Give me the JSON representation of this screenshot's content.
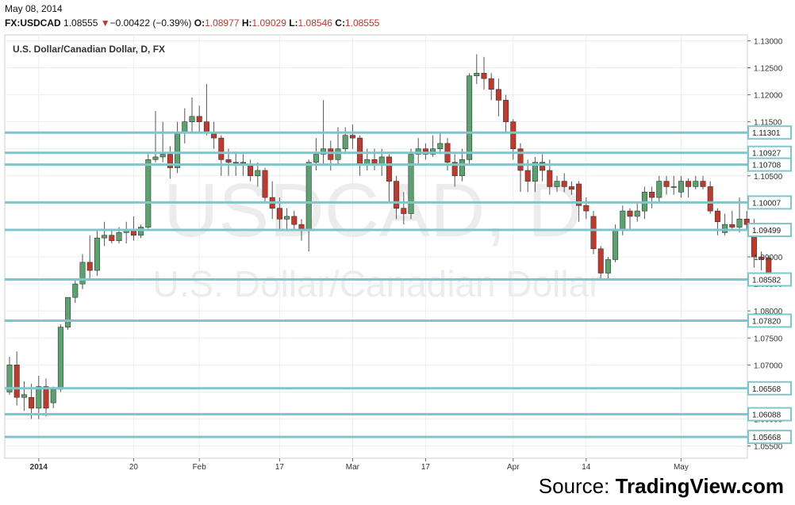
{
  "header": {
    "date": "May 08, 2014",
    "symbol": "FX:USDCAD",
    "price": "1.08555",
    "change_arrow": "▼",
    "change": "−0.00422 (−0.39%)",
    "open_label": "O:",
    "open": "1.08977",
    "high_label": "H:",
    "high": "1.09029",
    "low_label": "L:",
    "low": "1.08546",
    "close_label": "C:",
    "close": "1.08555"
  },
  "watermark": {
    "symbol": "USDCAD, D",
    "name": "U.S. Dollar/Canadian Dollar"
  },
  "source": {
    "prefix": "Source: ",
    "brand": "TradingView.com"
  },
  "colors": {
    "up": "#5aa26e",
    "down": "#c0392b",
    "level_line": "#7fc6cc",
    "grid": "#eaeef2",
    "watermark": "#ececec",
    "price_line": "#c0392b"
  },
  "chart_data": {
    "type": "candlestick",
    "title": "U.S. Dollar/Canadian Dollar, D, FX",
    "y_range": [
      1.0545,
      1.1305
    ],
    "y_ticks": [
      1.13,
      1.125,
      1.12,
      1.115,
      1.11,
      1.105,
      1.1,
      1.095,
      1.09,
      1.085,
      1.08,
      1.075,
      1.07,
      1.065,
      1.06,
      1.055
    ],
    "y_tick_labels": [
      "1.13000",
      "1.12500",
      "1.12000",
      "1.11500",
      "1.11000",
      "1.10500",
      "1.10000",
      "1.09500",
      "1.09000",
      "1.08500",
      "1.08000",
      "1.07500",
      "1.07000",
      "1.06500",
      "1.06000",
      "1.05500"
    ],
    "x_tick_labels": [
      {
        "label": "2014",
        "index": 4
      },
      {
        "label": "20",
        "index": 17
      },
      {
        "label": "Feb",
        "index": 26
      },
      {
        "label": "17",
        "index": 37
      },
      {
        "label": "Mar",
        "index": 47
      },
      {
        "label": "17",
        "index": 57
      },
      {
        "label": "Apr",
        "index": 69
      },
      {
        "label": "14",
        "index": 79
      },
      {
        "label": "May",
        "index": 92
      }
    ],
    "levels": [
      1.11301,
      1.10927,
      1.10708,
      1.10007,
      1.09499,
      1.08582,
      1.0782,
      1.06568,
      1.06088,
      1.05668
    ],
    "level_labels": [
      "1.11301",
      "1.10927",
      "1.10708",
      "1.10007",
      "1.09499",
      "1.08582",
      "1.07820",
      "1.06568",
      "1.06088",
      "1.05668"
    ],
    "current_price": 1.08555,
    "grid": true,
    "candles": [
      [
        1.065,
        1.07,
        1.0715,
        1.0645
      ],
      [
        1.07,
        1.064,
        1.0725,
        1.0625
      ],
      [
        1.064,
        1.0645,
        1.067,
        1.0615
      ],
      [
        1.064,
        1.062,
        1.0665,
        1.06
      ],
      [
        1.062,
        1.066,
        1.068,
        1.06
      ],
      [
        1.066,
        1.062,
        1.0675,
        1.0605
      ],
      [
        1.063,
        1.0655,
        1.066,
        1.062
      ],
      [
        1.0655,
        1.077,
        1.0775,
        1.065
      ],
      [
        1.077,
        1.0825,
        1.0825,
        1.0765
      ],
      [
        1.0825,
        1.085,
        1.086,
        1.0815
      ],
      [
        1.085,
        1.089,
        1.0905,
        1.084
      ],
      [
        1.089,
        1.0875,
        1.094,
        1.086
      ],
      [
        1.0875,
        1.0935,
        1.095,
        1.0865
      ],
      [
        1.0935,
        1.094,
        1.0965,
        1.092
      ],
      [
        1.094,
        1.093,
        1.095,
        1.0925
      ],
      [
        1.093,
        1.0945,
        1.0955,
        1.0925
      ],
      [
        1.0945,
        1.095,
        1.0965,
        1.0925
      ],
      [
        1.095,
        1.094,
        1.0975,
        1.093
      ],
      [
        1.094,
        1.0955,
        1.096,
        1.0935
      ],
      [
        1.0955,
        1.108,
        1.109,
        1.095
      ],
      [
        1.108,
        1.1085,
        1.117,
        1.1075
      ],
      [
        1.1085,
        1.109,
        1.115,
        1.1075
      ],
      [
        1.109,
        1.1065,
        1.1105,
        1.1045
      ],
      [
        1.1065,
        1.113,
        1.115,
        1.1055
      ],
      [
        1.113,
        1.115,
        1.1175,
        1.111
      ],
      [
        1.115,
        1.116,
        1.1195,
        1.113
      ],
      [
        1.116,
        1.115,
        1.118,
        1.113
      ],
      [
        1.115,
        1.113,
        1.122,
        1.1125
      ],
      [
        1.113,
        1.112,
        1.115,
        1.11
      ],
      [
        1.112,
        1.108,
        1.1125,
        1.105
      ],
      [
        1.108,
        1.1075,
        1.11,
        1.105
      ],
      [
        1.1075,
        1.1075,
        1.1095,
        1.105
      ],
      [
        1.1075,
        1.107,
        1.109,
        1.105
      ],
      [
        1.107,
        1.105,
        1.108,
        1.104
      ],
      [
        1.105,
        1.106,
        1.1075,
        1.103
      ],
      [
        1.106,
        1.101,
        1.1065,
        1.1
      ],
      [
        1.101,
        1.099,
        1.104,
        1.097
      ],
      [
        1.099,
        1.097,
        1.101,
        1.095
      ],
      [
        1.097,
        1.0975,
        1.099,
        1.095
      ],
      [
        1.0975,
        1.096,
        1.0985,
        1.095
      ],
      [
        1.096,
        1.095,
        1.097,
        1.093
      ],
      [
        1.095,
        1.1075,
        1.108,
        1.091
      ],
      [
        1.1075,
        1.109,
        1.112,
        1.106
      ],
      [
        1.109,
        1.11,
        1.119,
        1.107
      ],
      [
        1.11,
        1.108,
        1.1115,
        1.106
      ],
      [
        1.108,
        1.11,
        1.114,
        1.107
      ],
      [
        1.11,
        1.1125,
        1.114,
        1.109
      ],
      [
        1.1125,
        1.112,
        1.1145,
        1.11
      ],
      [
        1.112,
        1.107,
        1.1125,
        1.105
      ],
      [
        1.107,
        1.108,
        1.11,
        1.106
      ],
      [
        1.108,
        1.107,
        1.11,
        1.106
      ],
      [
        1.107,
        1.1085,
        1.11,
        1.105
      ],
      [
        1.1085,
        1.104,
        1.109,
        1.1
      ],
      [
        1.104,
        1.099,
        1.105,
        1.097
      ],
      [
        1.099,
        1.098,
        1.102,
        1.096
      ],
      [
        1.098,
        1.109,
        1.11,
        1.097
      ],
      [
        1.109,
        1.11,
        1.112,
        1.107
      ],
      [
        1.11,
        1.109,
        1.111,
        1.108
      ],
      [
        1.109,
        1.11,
        1.1125,
        1.1085
      ],
      [
        1.11,
        1.111,
        1.113,
        1.109
      ],
      [
        1.111,
        1.1075,
        1.112,
        1.106
      ],
      [
        1.1075,
        1.105,
        1.109,
        1.103
      ],
      [
        1.105,
        1.108,
        1.11,
        1.104
      ],
      [
        1.108,
        1.1235,
        1.124,
        1.107
      ],
      [
        1.1235,
        1.124,
        1.1275,
        1.122
      ],
      [
        1.124,
        1.123,
        1.127,
        1.121
      ],
      [
        1.123,
        1.121,
        1.124,
        1.119
      ],
      [
        1.121,
        1.119,
        1.123,
        1.116
      ],
      [
        1.119,
        1.115,
        1.12,
        1.113
      ],
      [
        1.115,
        1.11,
        1.1155,
        1.108
      ],
      [
        1.11,
        1.106,
        1.111,
        1.102
      ],
      [
        1.106,
        1.104,
        1.108,
        1.102
      ],
      [
        1.104,
        1.1075,
        1.1085,
        1.102
      ],
      [
        1.1075,
        1.106,
        1.109,
        1.104
      ],
      [
        1.106,
        1.103,
        1.108,
        1.1015
      ],
      [
        1.103,
        1.104,
        1.105,
        1.102
      ],
      [
        1.104,
        1.103,
        1.1055,
        1.102
      ],
      [
        1.103,
        1.1025,
        1.104,
        1.1015
      ],
      [
        1.1035,
        1.0995,
        1.104,
        1.0965
      ],
      [
        1.0995,
        1.0985,
        1.101,
        1.097
      ],
      [
        1.0975,
        1.0915,
        1.0985,
        1.0905
      ],
      [
        1.0915,
        1.087,
        1.092,
        1.086
      ],
      [
        1.087,
        1.0895,
        1.09,
        1.086
      ],
      [
        1.0895,
        1.095,
        1.096,
        1.089
      ],
      [
        1.095,
        1.0985,
        1.0995,
        1.094
      ],
      [
        1.0985,
        1.0975,
        1.099,
        1.095
      ],
      [
        1.0975,
        1.0985,
        1.1,
        1.0965
      ],
      [
        1.0985,
        1.102,
        1.103,
        1.097
      ],
      [
        1.102,
        1.101,
        1.103,
        1.099
      ],
      [
        1.101,
        1.104,
        1.105,
        1.1
      ],
      [
        1.104,
        1.103,
        1.105,
        1.1015
      ],
      [
        1.103,
        1.103,
        1.105,
        1.1015
      ],
      [
        1.102,
        1.104,
        1.105,
        1.101
      ],
      [
        1.104,
        1.103,
        1.1045,
        1.101
      ],
      [
        1.103,
        1.104,
        1.105,
        1.1025
      ],
      [
        1.104,
        1.103,
        1.105,
        1.1025
      ],
      [
        1.103,
        1.0985,
        1.104,
        1.098
      ],
      [
        1.0985,
        1.0965,
        1.099,
        1.094
      ],
      [
        1.0945,
        1.096,
        1.098,
        1.094
      ],
      [
        1.096,
        1.0955,
        1.0985,
        1.095
      ],
      [
        1.0955,
        1.097,
        1.101,
        1.0945
      ],
      [
        1.097,
        1.096,
        1.0985,
        1.095
      ],
      [
        1.096,
        1.09,
        1.097,
        1.088
      ],
      [
        1.09,
        1.0895,
        1.091,
        1.0875
      ],
      [
        1.0898,
        1.0855,
        1.0903,
        1.0855
      ]
    ]
  }
}
